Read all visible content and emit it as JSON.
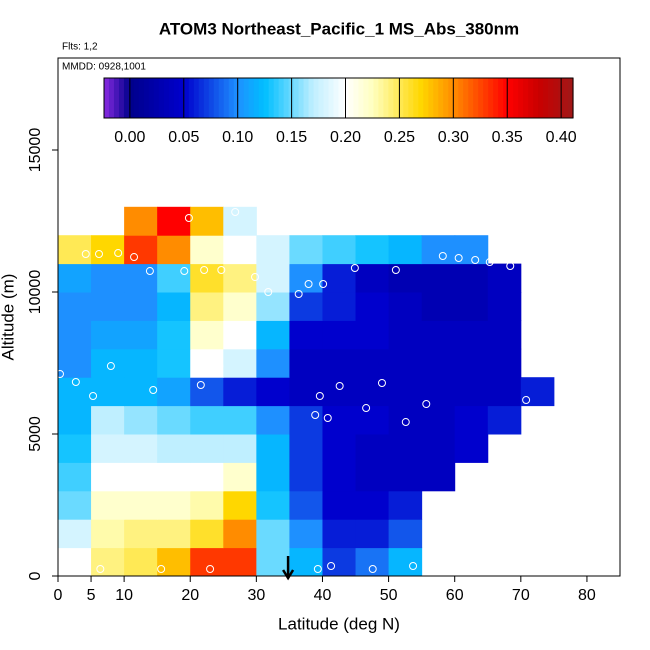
{
  "chart_data": {
    "type": "heatmap",
    "title": "ATOM3 Northeast_Pacific_1 MS_Abs_380nm",
    "subtitle": "Flts: 1,2",
    "annotation": "MMDD: 0928,1001",
    "xlabel": "Latitude (deg N)",
    "ylabel": "Altitude (m)",
    "xlim": [
      0,
      85
    ],
    "xticks": [
      0,
      5,
      10,
      20,
      30,
      40,
      50,
      60,
      70,
      80
    ],
    "ylim": [
      0,
      18240
    ],
    "yticks": [
      0,
      5000,
      10000,
      15000
    ],
    "x_edges": [
      0,
      5,
      10,
      15,
      20,
      25,
      30,
      35,
      40,
      45,
      50,
      55,
      60,
      65,
      70,
      75
    ],
    "y_edges": [
      0,
      1000,
      2000,
      3000,
      4000,
      5000,
      6000,
      7000,
      8000,
      9000,
      10000,
      11000,
      12000,
      13000
    ],
    "z": [
      [
        0.2,
        0.24,
        0.25,
        0.28,
        0.33,
        0.33,
        0.15,
        0.12,
        0.07,
        0.09,
        0.12,
        null,
        null,
        null,
        null
      ],
      [
        0.18,
        0.23,
        0.24,
        0.24,
        0.26,
        0.3,
        0.15,
        0.1,
        0.06,
        0.06,
        0.08,
        null,
        null,
        null,
        null
      ],
      [
        0.15,
        0.22,
        0.22,
        0.22,
        0.23,
        0.27,
        0.13,
        0.08,
        0.05,
        0.05,
        0.06,
        null,
        null,
        null,
        null
      ],
      [
        0.14,
        0.2,
        0.2,
        0.2,
        0.2,
        0.22,
        0.12,
        0.07,
        0.05,
        0.04,
        0.04,
        0.04,
        null,
        null,
        null
      ],
      [
        0.13,
        0.18,
        0.18,
        0.17,
        0.17,
        0.17,
        0.12,
        0.07,
        0.05,
        0.04,
        0.04,
        0.04,
        0.05,
        null,
        null
      ],
      [
        0.12,
        0.17,
        0.16,
        0.15,
        0.14,
        0.14,
        0.1,
        0.07,
        0.05,
        0.05,
        0.04,
        0.04,
        0.05,
        0.06,
        null
      ],
      [
        0.12,
        0.12,
        0.12,
        0.11,
        0.08,
        0.06,
        0.05,
        0.04,
        0.04,
        0.04,
        0.04,
        0.04,
        0.04,
        0.04,
        0.06
      ],
      [
        0.1,
        0.12,
        0.12,
        0.13,
        0.2,
        0.18,
        0.1,
        0.04,
        0.04,
        0.04,
        0.04,
        0.04,
        0.04,
        0.04,
        null
      ],
      [
        0.1,
        0.11,
        0.11,
        0.13,
        0.22,
        0.2,
        0.12,
        0.05,
        0.05,
        0.05,
        0.04,
        0.04,
        0.04,
        0.04,
        null
      ],
      [
        0.1,
        0.1,
        0.1,
        0.12,
        0.24,
        0.22,
        0.16,
        0.07,
        0.06,
        0.05,
        0.04,
        0.03,
        0.03,
        0.04,
        null
      ],
      [
        0.11,
        0.1,
        0.1,
        0.14,
        0.26,
        0.24,
        0.18,
        0.1,
        0.06,
        0.04,
        0.03,
        0.03,
        0.03,
        0.04,
        null
      ],
      [
        0.25,
        0.27,
        0.33,
        0.3,
        0.22,
        0.2,
        0.18,
        0.15,
        0.14,
        0.13,
        0.12,
        0.1,
        0.1,
        null,
        null
      ],
      [
        null,
        null,
        0.3,
        0.35,
        0.28,
        0.18,
        null,
        null,
        null,
        null,
        null,
        null,
        null,
        null,
        null
      ]
    ],
    "points_x": [
      1.5,
      6.4,
      15.6,
      23,
      39.3,
      41.3,
      47.6,
      53.7,
      2.7,
      5.3,
      14.4,
      21.6,
      8,
      24.4,
      0.3,
      39.6,
      38.9,
      40.8,
      42.6,
      49,
      46.6,
      52.6,
      55.7,
      70.8,
      13.9,
      19.1,
      22.1,
      24.7,
      29.8,
      31.8,
      36.4,
      37.9,
      40.1,
      44.9,
      51.1,
      58.2,
      60.6,
      63.1,
      65.3,
      68.4,
      4.2,
      6.2,
      9.1,
      11.5,
      19.8,
      26.8
    ],
    "points_y": [
      317,
      246,
      246,
      246,
      246,
      352,
      246,
      352,
      6831,
      6338,
      6549,
      6725,
      7394,
      7394,
      7113,
      6338,
      5669,
      5563,
      6690,
      6796,
      5915,
      5422,
      6056,
      6197,
      10739,
      10739,
      10775,
      10775,
      10528,
      10000,
      9930,
      10282,
      10282,
      10845,
      10775,
      11268,
      11197,
      11127,
      11056,
      10916,
      11338,
      11338,
      11373,
      11232,
      12606,
      12817
    ],
    "marker_x": 34.8,
    "colorbar_lim": [
      -0.024,
      0.411
    ],
    "colorbar_ticks": [
      {
        "value": 0,
        "label": "0.00"
      },
      {
        "value": 0.05,
        "label": "0.05"
      },
      {
        "value": 0.1,
        "label": "0.10"
      },
      {
        "value": 0.15,
        "label": "0.15"
      },
      {
        "value": 0.2,
        "label": "0.20"
      },
      {
        "value": 0.25,
        "label": "0.25"
      },
      {
        "value": 0.3,
        "label": "0.30"
      },
      {
        "value": 0.35,
        "label": "0.35"
      },
      {
        "value": 0.4,
        "label": "0.40"
      }
    ],
    "colormap": [
      [
        -0.024,
        "#8a2be2"
      ],
      [
        0,
        "#00008b"
      ],
      [
        0.05,
        "#0000cd"
      ],
      [
        0.1,
        "#1e90ff"
      ],
      [
        0.125,
        "#00bfff"
      ],
      [
        0.17,
        "#bfefff"
      ],
      [
        0.2,
        "#ffffff"
      ],
      [
        0.225,
        "#ffffc0"
      ],
      [
        0.27,
        "#ffd700"
      ],
      [
        0.3,
        "#ff8c00"
      ],
      [
        0.35,
        "#ff0000"
      ],
      [
        0.38,
        "#c80000"
      ],
      [
        0.411,
        "#a01818"
      ]
    ]
  }
}
